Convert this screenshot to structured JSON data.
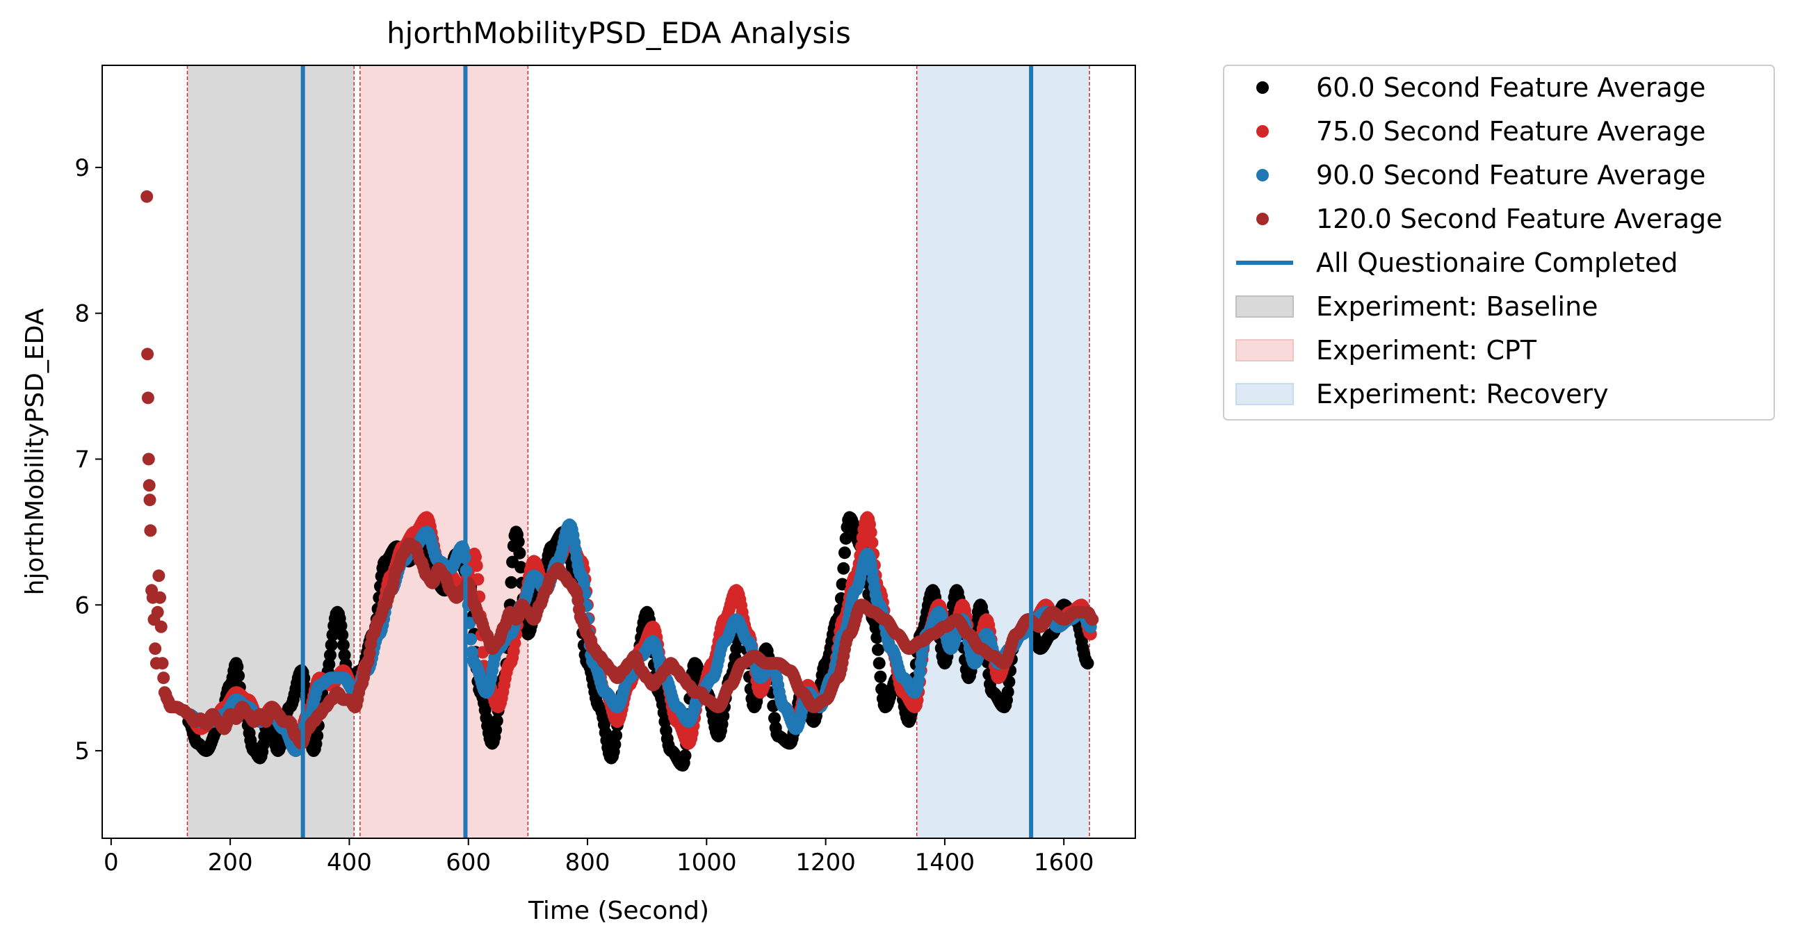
{
  "chart_data": {
    "type": "scatter",
    "title": "hjorthMobilityPSD_EDA Analysis",
    "xlabel": "Time (Second)",
    "ylabel": "hjorthMobilityPSD_EDA",
    "xlim": [
      -15,
      1720
    ],
    "ylim": [
      4.4,
      9.7
    ],
    "xticks": [
      0,
      200,
      400,
      600,
      800,
      1000,
      1200,
      1400,
      1600
    ],
    "yticks": [
      5,
      6,
      7,
      8,
      9
    ],
    "grid": false,
    "legend_position": "outside-right",
    "series": [
      {
        "name": "60.0 Second Feature Average",
        "color": "#000000",
        "x": [
          130,
          145,
          160,
          180,
          200,
          210,
          220,
          240,
          250,
          265,
          280,
          300,
          320,
          340,
          360,
          380,
          400,
          420,
          440,
          460,
          480,
          500,
          520,
          540,
          560,
          580,
          600,
          620,
          640,
          660,
          680,
          700,
          720,
          740,
          760,
          780,
          800,
          820,
          840,
          860,
          880,
          900,
          920,
          940,
          960,
          980,
          1000,
          1020,
          1040,
          1060,
          1080,
          1100,
          1120,
          1140,
          1160,
          1180,
          1200,
          1220,
          1240,
          1260,
          1280,
          1300,
          1320,
          1340,
          1360,
          1380,
          1400,
          1420,
          1440,
          1460,
          1480,
          1500,
          1520,
          1540,
          1560,
          1580,
          1600,
          1620,
          1640
        ],
        "y": [
          5.2,
          5.05,
          5.0,
          5.15,
          5.45,
          5.6,
          5.35,
          5.0,
          4.95,
          5.25,
          5.0,
          5.3,
          5.55,
          5.0,
          5.5,
          5.95,
          5.5,
          5.55,
          5.8,
          6.3,
          6.4,
          6.3,
          6.45,
          6.2,
          6.1,
          6.35,
          6.2,
          5.4,
          5.05,
          5.5,
          6.5,
          5.8,
          6.1,
          6.4,
          6.5,
          6.2,
          5.6,
          5.3,
          4.95,
          5.4,
          5.6,
          5.95,
          5.4,
          5.0,
          4.9,
          5.6,
          5.4,
          5.1,
          5.5,
          5.9,
          5.3,
          5.7,
          5.1,
          5.05,
          5.4,
          5.2,
          5.6,
          5.9,
          6.6,
          6.4,
          5.9,
          5.3,
          5.5,
          5.2,
          5.8,
          6.1,
          5.6,
          6.1,
          5.5,
          6.0,
          5.4,
          5.3,
          5.8,
          5.9,
          5.7,
          5.8,
          6.0,
          5.9,
          5.6
        ]
      },
      {
        "name": "75.0 Second Feature Average",
        "color": "#d62728",
        "x": [
          130,
          150,
          170,
          190,
          210,
          230,
          250,
          270,
          290,
          310,
          330,
          350,
          370,
          390,
          410,
          430,
          450,
          470,
          490,
          510,
          530,
          550,
          570,
          590,
          610,
          630,
          650,
          670,
          690,
          710,
          730,
          750,
          770,
          790,
          810,
          830,
          850,
          870,
          890,
          910,
          930,
          950,
          970,
          990,
          1010,
          1030,
          1050,
          1070,
          1090,
          1110,
          1130,
          1150,
          1170,
          1190,
          1210,
          1230,
          1250,
          1270,
          1290,
          1310,
          1330,
          1350,
          1370,
          1390,
          1410,
          1430,
          1450,
          1470,
          1490,
          1510,
          1530,
          1550,
          1570,
          1590,
          1610,
          1630,
          1645
        ],
        "y": [
          5.25,
          5.15,
          5.2,
          5.3,
          5.4,
          5.35,
          5.2,
          5.3,
          5.2,
          5.0,
          5.25,
          5.5,
          5.45,
          5.55,
          5.4,
          5.6,
          5.9,
          6.2,
          6.4,
          6.5,
          6.6,
          6.3,
          6.2,
          6.1,
          6.35,
          5.5,
          5.3,
          5.6,
          6.0,
          6.3,
          6.1,
          6.3,
          6.45,
          6.3,
          5.7,
          5.4,
          5.2,
          5.45,
          5.7,
          5.85,
          5.5,
          5.2,
          5.05,
          5.4,
          5.6,
          5.9,
          6.1,
          5.8,
          5.4,
          5.6,
          5.3,
          5.2,
          5.45,
          5.3,
          5.5,
          5.9,
          6.2,
          6.6,
          6.1,
          5.7,
          5.4,
          5.3,
          5.8,
          6.0,
          5.7,
          6.0,
          5.6,
          5.9,
          5.5,
          5.7,
          5.8,
          5.9,
          6.0,
          5.85,
          5.95,
          6.0,
          5.8
        ]
      },
      {
        "name": "90.0 Second Feature Average",
        "color": "#1f77b4",
        "x": [
          130,
          150,
          170,
          190,
          210,
          230,
          250,
          270,
          290,
          310,
          330,
          350,
          370,
          390,
          410,
          430,
          450,
          470,
          490,
          510,
          530,
          550,
          570,
          590,
          610,
          630,
          650,
          670,
          690,
          710,
          730,
          750,
          770,
          790,
          810,
          830,
          850,
          870,
          890,
          910,
          930,
          950,
          970,
          990,
          1010,
          1030,
          1050,
          1070,
          1090,
          1110,
          1130,
          1150,
          1170,
          1190,
          1210,
          1230,
          1250,
          1270,
          1290,
          1310,
          1330,
          1350,
          1370,
          1390,
          1410,
          1430,
          1450,
          1470,
          1490,
          1510,
          1530,
          1550,
          1570,
          1590,
          1610,
          1630,
          1645
        ],
        "y": [
          5.25,
          5.2,
          5.2,
          5.25,
          5.35,
          5.3,
          5.2,
          5.25,
          5.15,
          5.0,
          5.2,
          5.45,
          5.5,
          5.5,
          5.4,
          5.55,
          5.8,
          6.1,
          6.3,
          6.4,
          6.5,
          6.3,
          6.25,
          6.4,
          5.6,
          5.4,
          5.7,
          5.8,
          6.0,
          6.2,
          6.1,
          6.3,
          6.55,
          6.2,
          5.6,
          5.4,
          5.3,
          5.5,
          5.65,
          5.75,
          5.5,
          5.3,
          5.2,
          5.4,
          5.5,
          5.75,
          5.9,
          5.75,
          5.5,
          5.6,
          5.3,
          5.15,
          5.4,
          5.3,
          5.5,
          5.8,
          6.1,
          6.35,
          6.0,
          5.7,
          5.5,
          5.4,
          5.8,
          5.95,
          5.7,
          5.9,
          5.6,
          5.8,
          5.6,
          5.7,
          5.8,
          5.9,
          5.95,
          5.85,
          5.9,
          5.95,
          5.85
        ]
      },
      {
        "name": "120.0 Second Feature Average",
        "color": "#a52a2a",
        "x": [
          60,
          61,
          62,
          63,
          64,
          65,
          66,
          68,
          70,
          72,
          74,
          76,
          78,
          80,
          82,
          84,
          86,
          88,
          90,
          95,
          100,
          110,
          120,
          130,
          140,
          150,
          160,
          170,
          180,
          190,
          200,
          210,
          220,
          230,
          240,
          250,
          260,
          270,
          280,
          290,
          300,
          310,
          320,
          330,
          340,
          350,
          360,
          370,
          380,
          390,
          400,
          410,
          420,
          430,
          440,
          450,
          460,
          470,
          480,
          490,
          500,
          510,
          520,
          530,
          540,
          550,
          560,
          570,
          580,
          590,
          600,
          610,
          620,
          630,
          640,
          650,
          660,
          670,
          680,
          690,
          700,
          710,
          720,
          730,
          740,
          750,
          760,
          770,
          780,
          790,
          800,
          810,
          820,
          830,
          840,
          850,
          860,
          870,
          880,
          890,
          900,
          910,
          920,
          930,
          940,
          950,
          960,
          970,
          980,
          990,
          1000,
          1020,
          1040,
          1060,
          1080,
          1100,
          1120,
          1140,
          1160,
          1180,
          1200,
          1220,
          1240,
          1260,
          1280,
          1300,
          1320,
          1340,
          1360,
          1380,
          1400,
          1420,
          1440,
          1460,
          1480,
          1500,
          1520,
          1540,
          1560,
          1580,
          1600,
          1620,
          1640,
          1648
        ],
        "y": [
          8.8,
          7.72,
          7.42,
          7.0,
          6.82,
          6.72,
          6.51,
          6.1,
          6.05,
          5.9,
          5.7,
          5.6,
          5.95,
          6.2,
          6.05,
          5.85,
          5.6,
          5.5,
          5.4,
          5.35,
          5.3,
          5.3,
          5.28,
          5.25,
          5.2,
          5.22,
          5.18,
          5.25,
          5.2,
          5.15,
          5.25,
          5.22,
          5.3,
          5.25,
          5.2,
          5.25,
          5.2,
          5.3,
          5.25,
          5.2,
          5.2,
          5.1,
          5.05,
          5.15,
          5.2,
          5.25,
          5.3,
          5.35,
          5.4,
          5.35,
          5.35,
          5.3,
          5.45,
          5.6,
          5.8,
          5.9,
          6.0,
          6.1,
          6.25,
          6.35,
          6.42,
          6.4,
          6.3,
          6.2,
          6.15,
          6.25,
          6.2,
          6.1,
          6.05,
          6.1,
          6.15,
          6.0,
          5.9,
          5.8,
          5.7,
          5.75,
          5.85,
          5.95,
          5.9,
          6.0,
          5.95,
          5.9,
          6.0,
          6.1,
          6.2,
          6.25,
          6.2,
          6.15,
          6.1,
          5.9,
          5.8,
          5.7,
          5.65,
          5.6,
          5.55,
          5.5,
          5.55,
          5.6,
          5.65,
          5.55,
          5.5,
          5.45,
          5.5,
          5.55,
          5.6,
          5.55,
          5.5,
          5.45,
          5.4,
          5.4,
          5.35,
          5.3,
          5.45,
          5.6,
          5.65,
          5.6,
          5.6,
          5.55,
          5.4,
          5.3,
          5.35,
          5.5,
          5.8,
          6.0,
          5.95,
          5.9,
          5.8,
          5.7,
          5.75,
          5.8,
          5.85,
          5.9,
          5.8,
          5.7,
          5.65,
          5.6,
          5.8,
          5.9,
          5.85,
          5.95,
          5.9,
          5.95,
          5.95,
          5.9
        ]
      }
    ],
    "vlines": {
      "name": "All Questionaire Completed",
      "color": "#1f77b4",
      "x": [
        322,
        595,
        1545
      ]
    },
    "spans": [
      {
        "name": "Experiment: Baseline",
        "color": "#c0c0c0",
        "start": 128,
        "end": 408
      },
      {
        "name": "Experiment: CPT",
        "color": "#f4c2c2",
        "start": 418,
        "end": 700
      },
      {
        "name": "Experiment: Recovery",
        "color": "#c6dbef",
        "start": 1353,
        "end": 1643
      }
    ],
    "boundary_lines_x": [
      128,
      408,
      418,
      700,
      1353,
      1643
    ],
    "boundary_line_color": "#d62728"
  }
}
